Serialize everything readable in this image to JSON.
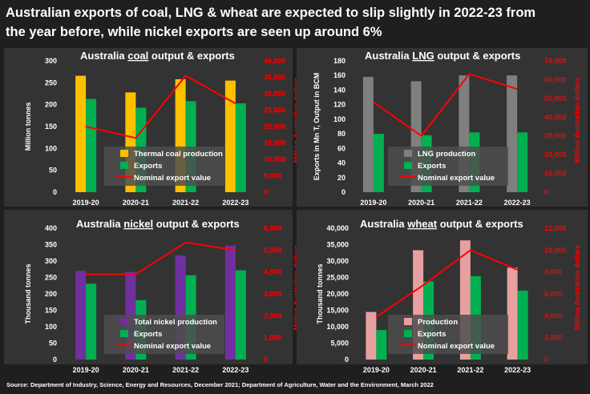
{
  "headline": {
    "line1": "Australian exports of coal, LNG & wheat are expected to slip slightly in 2022-23 from",
    "line2": "the year before, while nickel exports are seen up around 6%"
  },
  "source": "Source: Department of Industry, Science, Energy and Resources, December 2021; Department of Agriculture, Water and the Environment, March 2022",
  "chart_data": [
    {
      "type": "bar",
      "title_pre": "Australia ",
      "title_u": "coal",
      "title_post": " output & exports",
      "categories": [
        "2019-20",
        "2020-21",
        "2021-22",
        "2022-23"
      ],
      "ylabel": "Million tonnes",
      "ylim": [
        0,
        300
      ],
      "yticks": [
        "0",
        "50",
        "100",
        "150",
        "200",
        "250",
        "300"
      ],
      "y2label": "Million Australian dollars",
      "y2lim": [
        0,
        40000
      ],
      "y2ticks": [
        "0",
        "5,000",
        "10,000",
        "15,000",
        "20,000",
        "25,000",
        "30,000",
        "35,000",
        "40,000"
      ],
      "series": [
        {
          "name": "Thermal coal production",
          "kind": "bar",
          "values": [
            266,
            228,
            258,
            255
          ]
        },
        {
          "name": "Exports",
          "kind": "bar",
          "values": [
            213,
            193,
            208,
            203
          ]
        },
        {
          "name": "Nominal export value",
          "kind": "line",
          "axis": "secondary",
          "values": [
            20000,
            16500,
            35500,
            27000
          ]
        }
      ],
      "colors": {
        "s0": "#ffc000",
        "s1": "#00b050",
        "line": "#ff0000",
        "bg": "#333333",
        "legend_box": "#4d4d4d"
      }
    },
    {
      "type": "bar",
      "title_pre": "Australia ",
      "title_u": "LNG",
      "title_post": " output & exports",
      "categories": [
        "2019-20",
        "2020-21",
        "2021-22",
        "2022-23"
      ],
      "ylabel": "Exports in Mn T, Output in BCM",
      "ylim": [
        0,
        180
      ],
      "yticks": [
        "0",
        "20",
        "40",
        "60",
        "80",
        "100",
        "120",
        "140",
        "160",
        "180"
      ],
      "y2label": "Million Australian dollars",
      "y2lim": [
        0,
        70000
      ],
      "y2ticks": [
        "0",
        "10,000",
        "20,000",
        "30,000",
        "40,000",
        "50,000",
        "60,000",
        "70,000"
      ],
      "series": [
        {
          "name": "LNG production",
          "kind": "bar",
          "values": [
            158,
            152,
            160,
            160
          ]
        },
        {
          "name": "Exports",
          "kind": "bar",
          "values": [
            80,
            78,
            82,
            82
          ]
        },
        {
          "name": "Nominal export value",
          "kind": "line",
          "axis": "secondary",
          "values": [
            48000,
            30000,
            63000,
            55000
          ]
        }
      ],
      "colors": {
        "s0": "#7f7f7f",
        "s1": "#00b050",
        "line": "#ff0000",
        "bg": "#333333",
        "legend_box": "#4d4d4d"
      }
    },
    {
      "type": "bar",
      "title_pre": "Australia ",
      "title_u": "nickel",
      "title_post": " output & exports",
      "categories": [
        "2019-20",
        "2020-21",
        "2021-22",
        "2022-23"
      ],
      "ylabel": "Thousand tonnes",
      "ylim": [
        0,
        400
      ],
      "yticks": [
        "0",
        "50",
        "100",
        "150",
        "200",
        "250",
        "300",
        "350",
        "400"
      ],
      "y2label": "Million Australian dollars",
      "y2lim": [
        0,
        6000
      ],
      "y2ticks": [
        "0",
        "1,000",
        "2,000",
        "3,000",
        "4,000",
        "5,000",
        "6,000"
      ],
      "series": [
        {
          "name": "Total nickel production",
          "kind": "bar",
          "values": [
            270,
            267,
            317,
            347
          ]
        },
        {
          "name": "Exports",
          "kind": "bar",
          "values": [
            231,
            181,
            257,
            272
          ]
        },
        {
          "name": "Nominal export value",
          "kind": "line",
          "axis": "secondary",
          "values": [
            3900,
            3900,
            5350,
            5000
          ]
        }
      ],
      "colors": {
        "s0": "#7030a0",
        "s1": "#00b050",
        "line": "#ff0000",
        "bg": "#333333",
        "legend_box": "#4d4d4d"
      }
    },
    {
      "type": "bar",
      "title_pre": "Australia ",
      "title_u": "wheat",
      "title_post": " output & exports",
      "categories": [
        "2019-20",
        "2020-21",
        "2021-22",
        "2022-23"
      ],
      "ylabel": "Thousand tonnes",
      "ylim": [
        0,
        40000
      ],
      "yticks": [
        "0",
        "5,000",
        "10,000",
        "15,000",
        "20,000",
        "25,000",
        "30,000",
        "35,000",
        "40,000"
      ],
      "y2label": "Million Australian dollars",
      "y2lim": [
        0,
        12000
      ],
      "y2ticks": [
        "0",
        "2,000",
        "4,000",
        "6,000",
        "8,000",
        "10,000",
        "12,000"
      ],
      "series": [
        {
          "name": "Production",
          "kind": "bar",
          "values": [
            14500,
            33300,
            36300,
            28000
          ]
        },
        {
          "name": "Exports",
          "kind": "bar",
          "values": [
            9000,
            23800,
            25400,
            21000
          ]
        },
        {
          "name": "Nominal export value",
          "kind": "line",
          "axis": "secondary",
          "values": [
            3900,
            6800,
            10000,
            8200
          ]
        }
      ],
      "colors": {
        "s0": "#e6a0a0",
        "s1": "#00b050",
        "line": "#ff0000",
        "bg": "#333333",
        "legend_box": "#4d4d4d"
      }
    }
  ]
}
